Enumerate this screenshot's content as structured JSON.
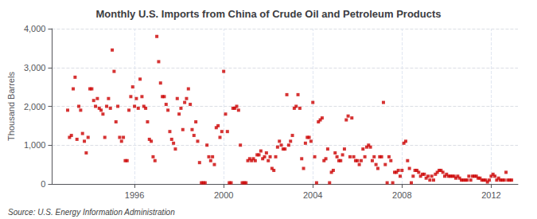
{
  "chart_data": {
    "type": "scatter",
    "title": "Monthly U.S. Imports from China of Crude Oil and Petroleum Products",
    "ylabel": "Thousand Barrels",
    "annotations": [
      "Source: U.S. Energy Information Administration"
    ],
    "color": "#CC0000",
    "marker": "square",
    "grid": true,
    "xlim": [
      1992.3,
      2013.2
    ],
    "xticks": [
      1996,
      2000,
      2004,
      2008,
      2012
    ],
    "ylim": [
      0,
      4000
    ],
    "yticks": [
      0,
      {
        "value": 1000,
        "label": "1,000"
      },
      {
        "value": 2000,
        "label": "2,000"
      },
      {
        "value": 3000,
        "label": "3,000"
      },
      {
        "value": 4000,
        "label": "4,000"
      }
    ],
    "x": [
      1993,
      1993.0833,
      1993.1667,
      1993.25,
      1993.3333,
      1993.4167,
      1993.5,
      1993.5833,
      1993.6667,
      1993.75,
      1993.8333,
      1993.9167,
      1994,
      1994.0833,
      1994.1667,
      1994.25,
      1994.3333,
      1994.4167,
      1994.5,
      1994.5833,
      1994.6667,
      1994.75,
      1994.8333,
      1994.9167,
      1995,
      1995.0833,
      1995.1667,
      1995.25,
      1995.3333,
      1995.4167,
      1995.5,
      1995.5833,
      1995.6667,
      1995.75,
      1995.8333,
      1995.9167,
      1996,
      1996.0833,
      1996.1667,
      1996.25,
      1996.3333,
      1996.4167,
      1996.5,
      1996.5833,
      1996.6667,
      1996.75,
      1996.8333,
      1996.9167,
      1997,
      1997.0833,
      1997.1667,
      1997.25,
      1997.3333,
      1997.4167,
      1997.5,
      1997.5833,
      1997.6667,
      1997.75,
      1997.8333,
      1997.9167,
      1998,
      1998.0833,
      1998.1667,
      1998.25,
      1998.3333,
      1998.4167,
      1998.5,
      1998.5833,
      1998.6667,
      1998.75,
      1998.8333,
      1998.9167,
      1999,
      1999.0833,
      1999.1667,
      1999.25,
      1999.3333,
      1999.4167,
      1999.5,
      1999.5833,
      1999.6667,
      1999.75,
      1999.8333,
      1999.9167,
      2000,
      2000.0833,
      2000.1667,
      2000.25,
      2000.3333,
      2000.4167,
      2000.5,
      2000.5833,
      2000.6667,
      2000.75,
      2000.8333,
      2000.9167,
      2001,
      2001.0833,
      2001.1667,
      2001.25,
      2001.3333,
      2001.4167,
      2001.5,
      2001.5833,
      2001.6667,
      2001.75,
      2001.8333,
      2001.9167,
      2002,
      2002.0833,
      2002.1667,
      2002.25,
      2002.3333,
      2002.4167,
      2002.5,
      2002.5833,
      2002.6667,
      2002.75,
      2002.8333,
      2002.9167,
      2003,
      2003.0833,
      2003.1667,
      2003.25,
      2003.3333,
      2003.4167,
      2003.5,
      2003.5833,
      2003.6667,
      2003.75,
      2003.8333,
      2003.9167,
      2004,
      2004.0833,
      2004.1667,
      2004.25,
      2004.3333,
      2004.4167,
      2004.5,
      2004.5833,
      2004.6667,
      2004.75,
      2004.8333,
      2004.9167,
      2005,
      2005.0833,
      2005.1667,
      2005.25,
      2005.3333,
      2005.4167,
      2005.5,
      2005.5833,
      2005.6667,
      2005.75,
      2005.8333,
      2005.9167,
      2006,
      2006.0833,
      2006.1667,
      2006.25,
      2006.3333,
      2006.4167,
      2006.5,
      2006.5833,
      2006.6667,
      2006.75,
      2006.8333,
      2006.9167,
      2007,
      2007.0833,
      2007.1667,
      2007.25,
      2007.3333,
      2007.4167,
      2007.5,
      2007.5833,
      2007.6667,
      2007.75,
      2007.8333,
      2007.9167,
      2008,
      2008.0833,
      2008.1667,
      2008.25,
      2008.3333,
      2008.4167,
      2008.5,
      2008.5833,
      2008.6667,
      2008.75,
      2008.8333,
      2008.9167,
      2009,
      2009.0833,
      2009.1667,
      2009.25,
      2009.3333,
      2009.4167,
      2009.5,
      2009.5833,
      2009.6667,
      2009.75,
      2009.8333,
      2009.9167,
      2010,
      2010.0833,
      2010.1667,
      2010.25,
      2010.3333,
      2010.4167,
      2010.5,
      2010.5833,
      2010.6667,
      2010.75,
      2010.8333,
      2010.9167,
      2011,
      2011.0833,
      2011.1667,
      2011.25,
      2011.3333,
      2011.4167,
      2011.5,
      2011.5833,
      2011.6667,
      2011.75,
      2011.8333,
      2011.9167,
      2012,
      2012.0833,
      2012.1667,
      2012.25,
      2012.3333,
      2012.4167,
      2012.5,
      2012.5833,
      2012.6667,
      2012.75,
      2012.8333,
      2012.9167
    ],
    "values": [
      1900,
      1200,
      1250,
      2450,
      2750,
      1150,
      2000,
      1900,
      1300,
      1100,
      800,
      1200,
      2450,
      2450,
      2150,
      2000,
      2200,
      1950,
      1900,
      1800,
      1200,
      2000,
      2200,
      1950,
      3450,
      2900,
      1600,
      2000,
      1200,
      1100,
      1200,
      600,
      600,
      1900,
      2250,
      2500,
      2000,
      2200,
      1950,
      2700,
      2250,
      2000,
      1950,
      1600,
      1150,
      1100,
      700,
      600,
      3800,
      3150,
      2600,
      2250,
      2250,
      2050,
      1900,
      1350,
      1150,
      1050,
      900,
      2200,
      1800,
      1950,
      1400,
      2100,
      2200,
      2450,
      2050,
      1400,
      1250,
      1600,
      1100,
      550,
      30,
      30,
      30,
      1000,
      700,
      600,
      700,
      500,
      1450,
      1500,
      1200,
      1350,
      2900,
      1800,
      1350,
      30,
      30,
      1950,
      1950,
      2000,
      1900,
      1000,
      30,
      30,
      30,
      600,
      650,
      600,
      650,
      600,
      750,
      750,
      850,
      650,
      700,
      800,
      600,
      700,
      400,
      350,
      700,
      950,
      1100,
      1000,
      900,
      900,
      2300,
      1000,
      1100,
      1250,
      1950,
      2000,
      2300,
      1950,
      650,
      400,
      1050,
      1200,
      1200,
      1100,
      2100,
      700,
      30,
      1600,
      1650,
      1700,
      600,
      650,
      900,
      30,
      300,
      350,
      800,
      700,
      600,
      600,
      750,
      900,
      1650,
      1750,
      700,
      1700,
      700,
      600,
      600,
      500,
      600,
      900,
      700,
      950,
      1000,
      950,
      600,
      700,
      500,
      400,
      700,
      700,
      2100,
      500,
      30,
      700,
      600,
      30,
      300,
      300,
      350,
      200,
      350,
      1050,
      1100,
      600,
      400,
      30,
      200,
      350,
      350,
      300,
      200,
      250,
      250,
      150,
      200,
      100,
      200,
      100,
      250,
      300,
      350,
      350,
      300,
      200,
      250,
      200,
      200,
      200,
      200,
      150,
      200,
      150,
      100,
      100,
      100,
      100,
      200,
      100,
      200,
      200,
      200,
      150,
      150,
      100,
      100,
      100,
      50,
      100,
      200,
      250,
      200,
      100,
      150,
      100,
      100,
      100,
      300,
      100,
      100,
      100
    ]
  }
}
